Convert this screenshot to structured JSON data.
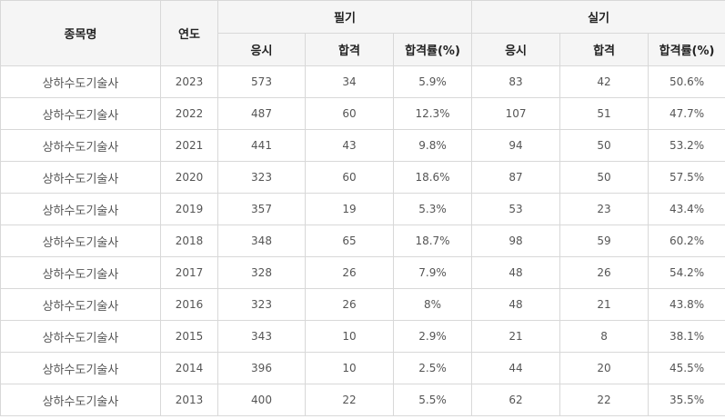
{
  "headers": {
    "name": "종목명",
    "year": "연도",
    "written": "필기",
    "practical": "실기",
    "applicants": "응시",
    "passed": "합격",
    "rate": "합격률(%)"
  },
  "rows": [
    {
      "name": "상하수도기술사",
      "year": "2023",
      "w_app": "573",
      "w_pass": "34",
      "w_rate": "5.9%",
      "p_app": "83",
      "p_pass": "42",
      "p_rate": "50.6%"
    },
    {
      "name": "상하수도기술사",
      "year": "2022",
      "w_app": "487",
      "w_pass": "60",
      "w_rate": "12.3%",
      "p_app": "107",
      "p_pass": "51",
      "p_rate": "47.7%"
    },
    {
      "name": "상하수도기술사",
      "year": "2021",
      "w_app": "441",
      "w_pass": "43",
      "w_rate": "9.8%",
      "p_app": "94",
      "p_pass": "50",
      "p_rate": "53.2%"
    },
    {
      "name": "상하수도기술사",
      "year": "2020",
      "w_app": "323",
      "w_pass": "60",
      "w_rate": "18.6%",
      "p_app": "87",
      "p_pass": "50",
      "p_rate": "57.5%"
    },
    {
      "name": "상하수도기술사",
      "year": "2019",
      "w_app": "357",
      "w_pass": "19",
      "w_rate": "5.3%",
      "p_app": "53",
      "p_pass": "23",
      "p_rate": "43.4%"
    },
    {
      "name": "상하수도기술사",
      "year": "2018",
      "w_app": "348",
      "w_pass": "65",
      "w_rate": "18.7%",
      "p_app": "98",
      "p_pass": "59",
      "p_rate": "60.2%"
    },
    {
      "name": "상하수도기술사",
      "year": "2017",
      "w_app": "328",
      "w_pass": "26",
      "w_rate": "7.9%",
      "p_app": "48",
      "p_pass": "26",
      "p_rate": "54.2%"
    },
    {
      "name": "상하수도기술사",
      "year": "2016",
      "w_app": "323",
      "w_pass": "26",
      "w_rate": "8%",
      "p_app": "48",
      "p_pass": "21",
      "p_rate": "43.8%"
    },
    {
      "name": "상하수도기술사",
      "year": "2015",
      "w_app": "343",
      "w_pass": "10",
      "w_rate": "2.9%",
      "p_app": "21",
      "p_pass": "8",
      "p_rate": "38.1%"
    },
    {
      "name": "상하수도기술사",
      "year": "2014",
      "w_app": "396",
      "w_pass": "10",
      "w_rate": "2.5%",
      "p_app": "44",
      "p_pass": "20",
      "p_rate": "45.5%"
    },
    {
      "name": "상하수도기술사",
      "year": "2013",
      "w_app": "400",
      "w_pass": "22",
      "w_rate": "5.5%",
      "p_app": "62",
      "p_pass": "22",
      "p_rate": "35.5%"
    }
  ]
}
